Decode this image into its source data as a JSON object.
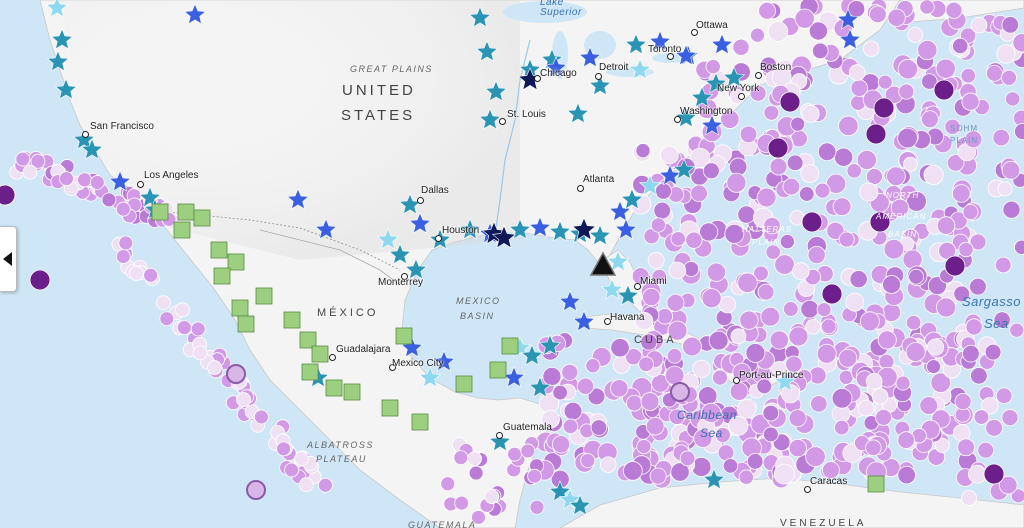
{
  "map": {
    "countries": [
      "UNITED",
      "STATES",
      "MÉXICO",
      "CUBA",
      "VENEZUELA",
      "GUATEMALA"
    ],
    "regions": [
      "GREAT PLAINS",
      "MEXICO",
      "BASIN",
      "ALBATROSS",
      "PLATEAU",
      "SOHM",
      "PLAIN"
    ],
    "oceans": [
      "Sargasso",
      "Sea",
      "Caribbean",
      "Sea",
      "Lake",
      "Superior"
    ],
    "overlay_features": [
      "HATTERAS",
      "PLAIN",
      "NORTH",
      "AMERICAN",
      "BASIN"
    ],
    "cities": [
      "Ottawa",
      "Toronto",
      "Boston",
      "Detroit",
      "Chicago",
      "New York",
      "Washington",
      "St. Louis",
      "San Francisco",
      "Los Angeles",
      "Atlanta",
      "Dallas",
      "Houston",
      "Monterrey",
      "Miami",
      "Havana",
      "Guadalajara",
      "Mexico City",
      "Guatemala",
      "Port-au-Prince",
      "Caracas"
    ]
  },
  "colors": {
    "water": "#cfe6f7",
    "land": "#f4f4f4",
    "purple_light": "#efe0f4",
    "purple_mid": "#d29ae6",
    "purple_strong": "#b97bd6",
    "purple_dark": "#6c1f8a",
    "star_teal": "#2a94b4",
    "star_lightblue": "#8ed9ef",
    "star_royal": "#3a5fe0",
    "star_navy": "#111858",
    "square_green": "#9cd080"
  },
  "legend_markers": [
    "purple-circle",
    "teal-star",
    "green-square",
    "black-triangle"
  ],
  "controls": {
    "collapse_icon": "chevron-left-icon"
  }
}
